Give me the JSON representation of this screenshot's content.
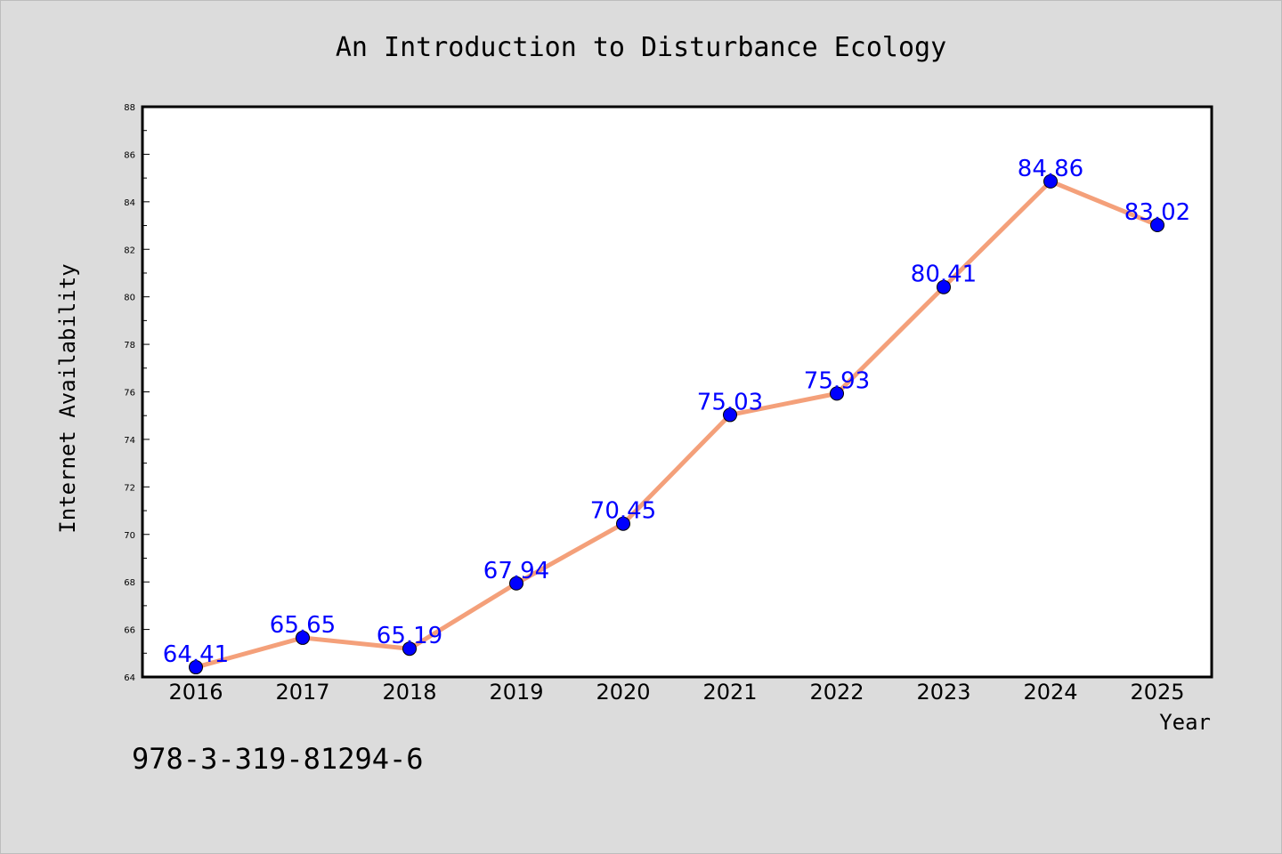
{
  "chart_data": {
    "type": "line",
    "title": "An Introduction to Disturbance Ecology",
    "xlabel": "Year",
    "ylabel": "Internet Availability",
    "categories": [
      "2016",
      "2017",
      "2018",
      "2019",
      "2020",
      "2021",
      "2022",
      "2023",
      "2024",
      "2025"
    ],
    "series": [
      {
        "values": [
          64.41,
          65.65,
          65.19,
          67.94,
          70.45,
          75.03,
          75.93,
          80.41,
          84.86,
          83.02
        ],
        "labels": [
          "64.41",
          "65.65",
          "65.19",
          "67.94",
          "70.45",
          "75.03",
          "75.93",
          "80.41",
          "84.86",
          "83.02"
        ],
        "line_color": "#f4a07a",
        "marker_color": "#0000ff",
        "label_color": "#0000ff"
      }
    ],
    "ylim": [
      64,
      88
    ],
    "yticks": [
      "64",
      "66",
      "68",
      "70",
      "72",
      "74",
      "76",
      "78",
      "80",
      "82",
      "84",
      "86",
      "88"
    ],
    "grid": false,
    "legend": "none"
  },
  "footer": {
    "isbn": "978-3-319-81294-6"
  },
  "colors": {
    "background": "#dcdcdc",
    "plot_background": "#ffffff"
  }
}
